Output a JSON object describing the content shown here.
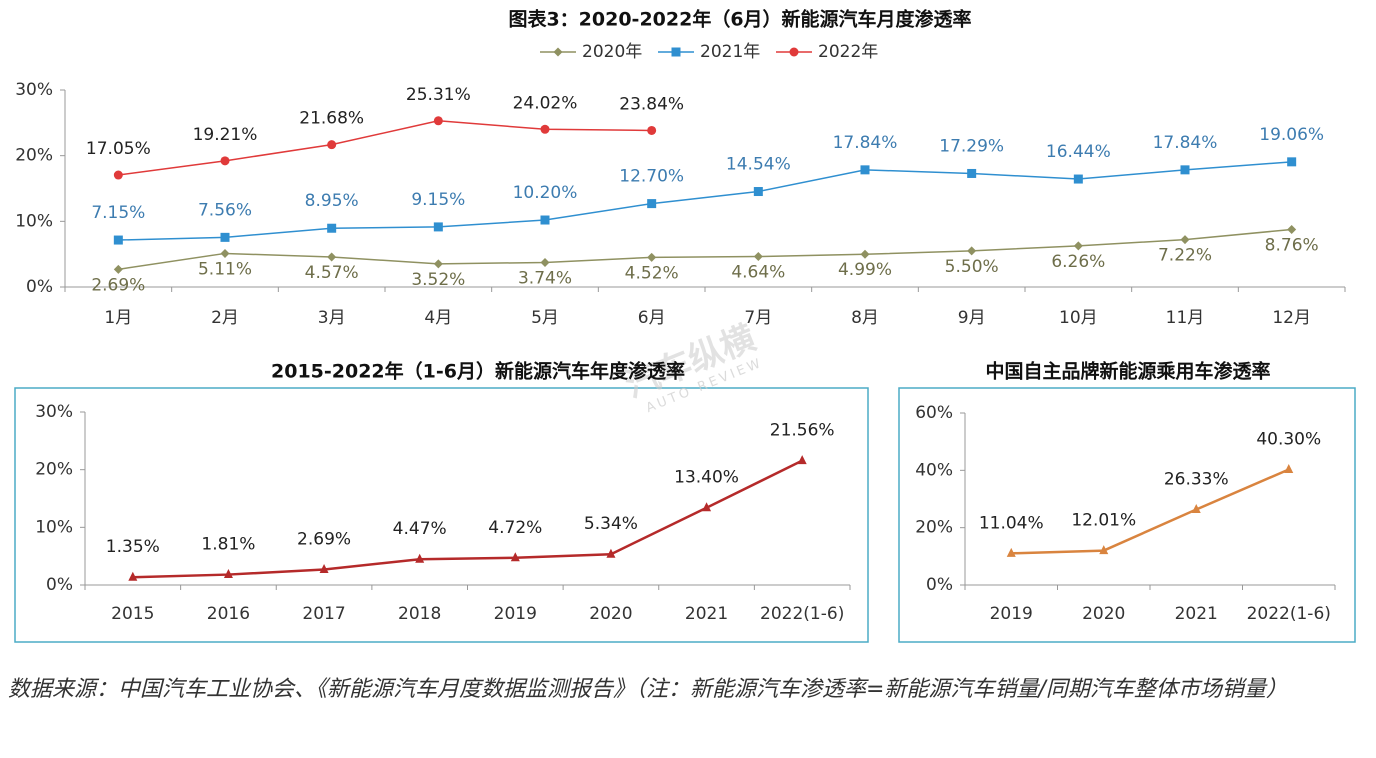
{
  "chart_data": [
    {
      "type": "line",
      "title": "图表3：2020-2022年（6月）新能源汽车月度渗透率",
      "categories": [
        "1月",
        "2月",
        "3月",
        "4月",
        "5月",
        "6月",
        "7月",
        "8月",
        "9月",
        "10月",
        "11月",
        "12月"
      ],
      "series": [
        {
          "name": "2020年",
          "color": "#8f9161",
          "marker": "diamond",
          "values": [
            2.69,
            5.11,
            4.57,
            3.52,
            3.74,
            4.52,
            4.64,
            4.99,
            5.5,
            6.26,
            7.22,
            8.76
          ],
          "value_labels": [
            "2.69%",
            "5.11%",
            "4.57%",
            "3.52%",
            "3.74%",
            "4.52%",
            "4.64%",
            "4.99%",
            "5.50%",
            "6.26%",
            "7.22%",
            "8.76%"
          ]
        },
        {
          "name": "2021年",
          "color": "#2f8fd0",
          "marker": "square",
          "values": [
            7.15,
            7.56,
            8.95,
            9.15,
            10.2,
            12.7,
            14.54,
            17.84,
            17.29,
            16.44,
            17.84,
            19.06
          ],
          "value_labels": [
            "7.15%",
            "7.56%",
            "8.95%",
            "9.15%",
            "10.20%",
            "12.70%",
            "14.54%",
            "17.84%",
            "17.29%",
            "16.44%",
            "17.84%",
            "19.06%"
          ]
        },
        {
          "name": "2022年",
          "color": "#e03a3a",
          "marker": "circle",
          "values": [
            17.05,
            19.21,
            21.68,
            25.31,
            24.02,
            23.84,
            null,
            null,
            null,
            null,
            null,
            null
          ],
          "value_labels": [
            "17.05%",
            "19.21%",
            "21.68%",
            "25.31%",
            "24.02%",
            "23.84%",
            null,
            null,
            null,
            null,
            null,
            null
          ]
        }
      ],
      "ylim": [
        0,
        30
      ],
      "yticks": [
        {
          "value": 0,
          "label": "0%"
        },
        {
          "value": 10,
          "label": "10%"
        },
        {
          "value": 20,
          "label": "20%"
        },
        {
          "value": 30,
          "label": "30%"
        }
      ],
      "legend": "top",
      "grid": false
    },
    {
      "type": "line",
      "title": "2015-2022年（1-6月）新能源汽车年度渗透率",
      "categories": [
        "2015",
        "2016",
        "2017",
        "2018",
        "2019",
        "2020",
        "2021",
        "2022(1-6)"
      ],
      "values": [
        1.35,
        1.81,
        2.69,
        4.47,
        4.72,
        5.34,
        13.4,
        21.56
      ],
      "value_labels": [
        "1.35%",
        "1.81%",
        "2.69%",
        "4.47%",
        "4.72%",
        "5.34%",
        "13.40%",
        "21.56%"
      ],
      "color": "#b52a2a",
      "marker": "triangle",
      "ylim": [
        0,
        30
      ],
      "yticks": [
        {
          "value": 0,
          "label": "0%"
        },
        {
          "value": 10,
          "label": "10%"
        },
        {
          "value": 20,
          "label": "20%"
        },
        {
          "value": 30,
          "label": "30%"
        }
      ],
      "grid": false
    },
    {
      "type": "line",
      "title": "中国自主品牌新能源乘用车渗透率",
      "categories": [
        "2019",
        "2020",
        "2021",
        "2022(1-6)"
      ],
      "values": [
        11.04,
        12.01,
        26.33,
        40.3
      ],
      "value_labels": [
        "11.04%",
        "12.01%",
        "26.33%",
        "40.30%"
      ],
      "color": "#d9843f",
      "marker": "triangle",
      "ylim": [
        0,
        60
      ],
      "yticks": [
        {
          "value": 0,
          "label": "0%"
        },
        {
          "value": 20,
          "label": "20%"
        },
        {
          "value": 40,
          "label": "40%"
        },
        {
          "value": 60,
          "label": "60%"
        }
      ],
      "grid": false
    }
  ],
  "watermark": {
    "name": "汽车纵横",
    "subtitle": "AUTO REVIEW"
  },
  "source": "数据来源：中国汽车工业协会、《新能源汽车月度数据监测报告》（注：新能源汽车渗透率=新能源汽车销量/同期汽车整体市场销量）"
}
